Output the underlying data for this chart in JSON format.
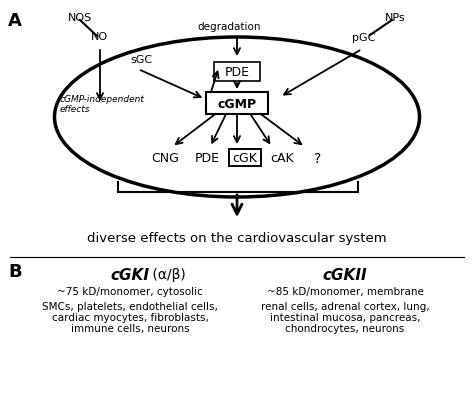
{
  "bg_color": "#ffffff",
  "label_A": "A",
  "label_B": "B",
  "nos_label": "NOS",
  "no_label": "NO",
  "sgc_label": "sGC",
  "nps_label": "NPs",
  "pgc_label": "pGC",
  "degradation_label": "degradation",
  "pde_top_label": "PDE",
  "cgmp_label": "cGMP",
  "cgmp_indep_label": "cGMP-independent\neffects",
  "cng_label": "CNG",
  "pde_bot_label": "PDE",
  "cgk_label": "cGK",
  "cak_label": "cAK",
  "q_label": "?",
  "diverse_label": "diverse effects on the cardiovascular system",
  "cgki_title": "cGKI",
  "cgki_greek": " (α/β)",
  "cgki_line1": "~75 kD/monomer, cytosolic",
  "cgki_line2": "SMCs, platelets, endothelial cells,",
  "cgki_line3": "cardiac myocytes, fibroblasts,",
  "cgki_line4": "immune cells, neurons",
  "cgkii_title": "cGKII",
  "cgkii_line1": "~85 kD/monomer, membrane",
  "cgkii_line2": "renal cells, adrenal cortex, lung,",
  "cgkii_line3": "intestinal mucosa, pancreas,",
  "cgkii_line4": "chondrocytes, neurons"
}
